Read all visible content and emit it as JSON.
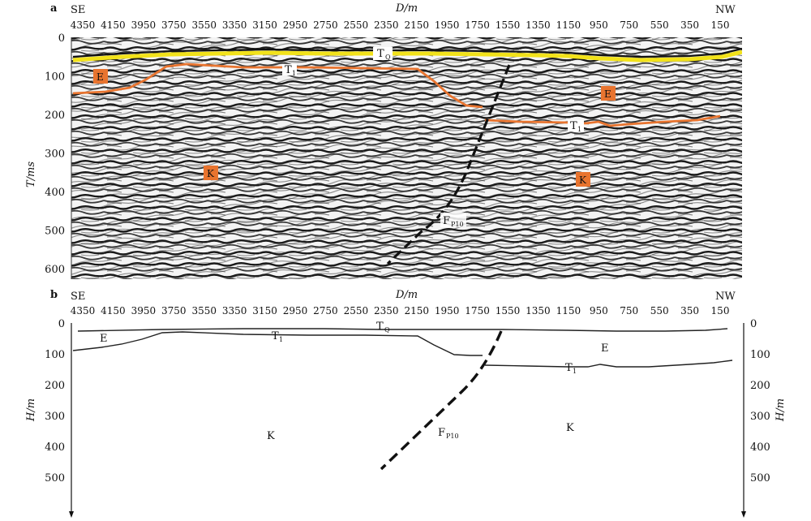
{
  "panel_a": {
    "letter": "a",
    "dir_left": "SE",
    "dir_right": "NW",
    "x_axis_label": "D/m",
    "y_axis_label": "T/ms",
    "x_ticks": [
      "4350",
      "4150",
      "3950",
      "3750",
      "3550",
      "3350",
      "3150",
      "2950",
      "2750",
      "2550",
      "2350",
      "2150",
      "1950",
      "1750",
      "1550",
      "1350",
      "1150",
      "950",
      "750",
      "550",
      "350",
      "150"
    ],
    "y_ticks": [
      "0",
      "100",
      "200",
      "300",
      "400",
      "500",
      "600"
    ],
    "labels": {
      "tq": "T",
      "tq_sub": "Q",
      "t1_upper": "T",
      "t1_upper_sub": "1",
      "t1_lower": "T",
      "t1_lower_sub": "1",
      "e_left": "E",
      "e_right": "E",
      "k_left": "K",
      "k_right": "K",
      "fault": "F",
      "fault_sub": "P10"
    },
    "colors": {
      "tq_line": "#f2e21a",
      "t1_line": "#e8742f",
      "label_box": "#e8742f"
    }
  },
  "panel_b": {
    "letter": "b",
    "dir_left": "SE",
    "dir_right": "NW",
    "x_axis_label": "D/m",
    "y_axis_label_left": "H/m",
    "y_axis_label_right": "H/m",
    "x_ticks": [
      "4350",
      "4150",
      "3950",
      "3750",
      "3550",
      "3350",
      "3150",
      "2950",
      "2750",
      "2550",
      "2350",
      "2150",
      "1950",
      "1750",
      "1550",
      "1350",
      "1150",
      "950",
      "750",
      "550",
      "350",
      "150"
    ],
    "y_ticks": [
      "0",
      "100",
      "200",
      "300",
      "400",
      "500"
    ],
    "labels": {
      "tq": "T",
      "tq_sub": "Q",
      "t1_upper": "T",
      "t1_upper_sub": "1",
      "t1_lower": "T",
      "t1_lower_sub": "1",
      "e_left": "E",
      "e_right": "E",
      "k_left": "K",
      "k_right": "K",
      "fault": "F",
      "fault_sub": "P10"
    }
  }
}
